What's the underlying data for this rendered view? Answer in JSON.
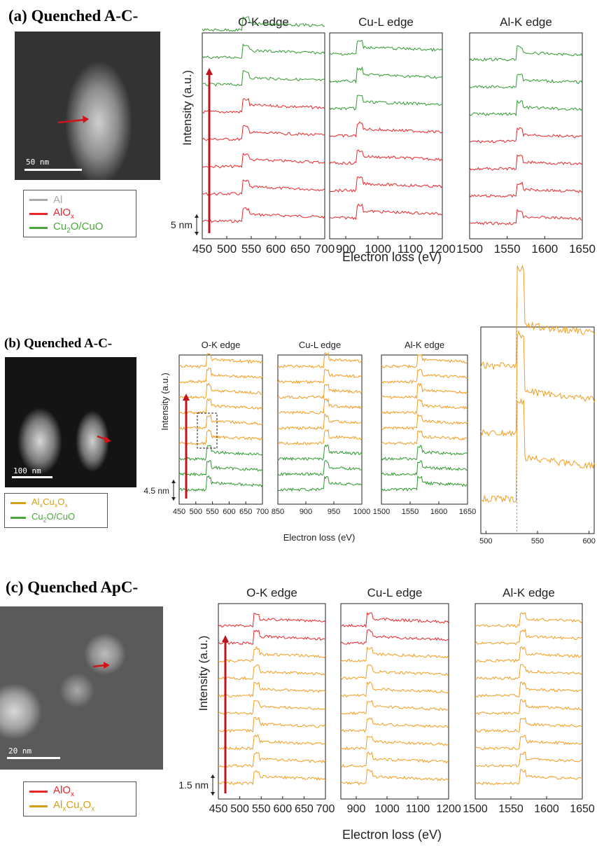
{
  "panels": [
    {
      "id": "a",
      "title": "(a) Quenched A-C-",
      "scale_bar": "50 nm",
      "legend": [
        {
          "label": "Al",
          "color": "#aaaaaa"
        },
        {
          "label": "AlO",
          "sub": "x",
          "color": "#e8262a"
        },
        {
          "label": "Cu",
          "sub": "2",
          "label_rest": "O/CuO",
          "color": "#4aa53c"
        }
      ],
      "step_label": "5 nm",
      "ylabel": "Intensity (a.u.)",
      "xlabel": "Electron loss (eV)"
    },
    {
      "id": "b",
      "title": "(b) Quenched A-C-",
      "scale_bar": "100 nm",
      "legend": [
        {
          "label": "Al",
          "sub": "x",
          "label_rest": "Cu",
          "sub2": "x",
          "label_rest2": "O",
          "sub3": "x",
          "color": "#d4a017"
        },
        {
          "label": "Cu",
          "sub": "2",
          "label_rest": "O/CuO",
          "color": "#4aa53c"
        }
      ],
      "step_label": "4.5 nm",
      "ylabel": "Intensity (a.u.)",
      "xlabel": "Electron loss (eV)"
    },
    {
      "id": "c",
      "title": "(c) Quenched ApC-",
      "scale_bar": "20 nm",
      "legend": [
        {
          "label": "AlO",
          "sub": "x",
          "color": "#e8262a"
        },
        {
          "label": "Al",
          "sub": "x",
          "label_rest": "Cu",
          "sub2": "x",
          "label_rest2": "O",
          "sub3": "x",
          "color": "#d4a017"
        }
      ],
      "step_label": "1.5 nm",
      "ylabel": "Intensity (a.u.)",
      "xlabel": "Electron loss (eV)"
    }
  ],
  "colors": {
    "red": "#e8262a",
    "green": "#2f9a2f",
    "orange": "#f39c1e",
    "arrow": "#c0141c"
  },
  "chart_data": [
    {
      "type": "line",
      "panel": "a",
      "title": "O-K edge",
      "xlim": [
        450,
        700
      ],
      "xticks": [
        "450",
        "500",
        "550",
        "600",
        "650",
        "700"
      ],
      "edge": 532,
      "series_colors": [
        "red",
        "red",
        "red",
        "red",
        "red",
        "green",
        "green",
        "green"
      ]
    },
    {
      "type": "line",
      "panel": "a",
      "title": "Cu-L edge",
      "xlim": [
        850,
        1200
      ],
      "xticks": [
        "900",
        "1000",
        "1100",
        "1200"
      ],
      "edge": 932,
      "series_colors": [
        "red",
        "red",
        "red",
        "red",
        "green",
        "green",
        "green"
      ]
    },
    {
      "type": "line",
      "panel": "a",
      "title": "Al-K edge",
      "xlim": [
        1500,
        1650
      ],
      "xticks": [
        "1500",
        "1550",
        "1600",
        "1650"
      ],
      "edge": 1562,
      "series_colors": [
        "red",
        "red",
        "red",
        "red",
        "green",
        "green",
        "green"
      ]
    },
    {
      "type": "line",
      "panel": "b",
      "title": "O-K edge",
      "xlim": [
        450,
        700
      ],
      "xticks": [
        "450",
        "500",
        "550",
        "600",
        "650",
        "700"
      ],
      "edge": 532,
      "series_colors": [
        "green",
        "green",
        "green",
        "orange",
        "orange",
        "orange",
        "orange",
        "orange",
        "orange"
      ]
    },
    {
      "type": "line",
      "panel": "b",
      "title": "Cu-L edge",
      "xlim": [
        850,
        1000
      ],
      "xticks": [
        "850",
        "900",
        "950",
        "1000"
      ],
      "edge": 932,
      "series_colors": [
        "green",
        "green",
        "green",
        "orange",
        "orange",
        "orange",
        "orange",
        "orange",
        "orange"
      ]
    },
    {
      "type": "line",
      "panel": "b",
      "title": "Al-K edge",
      "xlim": [
        1500,
        1650
      ],
      "xticks": [
        "1500",
        "1550",
        "1600",
        "1650"
      ],
      "edge": 1562,
      "series_colors": [
        "green",
        "green",
        "green",
        "orange",
        "orange",
        "orange",
        "orange",
        "orange",
        "orange"
      ]
    },
    {
      "type": "line",
      "panel": "b",
      "title": "",
      "xlim": [
        495,
        605
      ],
      "xticks": [
        "500",
        "550",
        "600"
      ],
      "edge": 530,
      "series_colors": [
        "orange",
        "orange",
        "orange"
      ]
    },
    {
      "type": "line",
      "panel": "c",
      "title": "O-K edge",
      "xlim": [
        450,
        700
      ],
      "xticks": [
        "450",
        "500",
        "550",
        "600",
        "650",
        "700"
      ],
      "edge": 532,
      "series_colors": [
        "orange",
        "orange",
        "orange",
        "orange",
        "orange",
        "orange",
        "orange",
        "orange",
        "red",
        "red"
      ]
    },
    {
      "type": "line",
      "panel": "c",
      "title": "Cu-L edge",
      "xlim": [
        850,
        1200
      ],
      "xticks": [
        "900",
        "1000",
        "1100",
        "1200"
      ],
      "edge": 932,
      "series_colors": [
        "orange",
        "orange",
        "orange",
        "orange",
        "orange",
        "orange",
        "orange",
        "orange",
        "red",
        "red"
      ]
    },
    {
      "type": "line",
      "panel": "c",
      "title": "Al-K edge",
      "xlim": [
        1500,
        1650
      ],
      "xticks": [
        "1500",
        "1550",
        "1600",
        "1650"
      ],
      "edge": 1562,
      "series_colors": [
        "orange",
        "orange",
        "orange",
        "orange",
        "orange",
        "orange",
        "orange",
        "orange",
        "orange",
        "orange"
      ]
    }
  ]
}
